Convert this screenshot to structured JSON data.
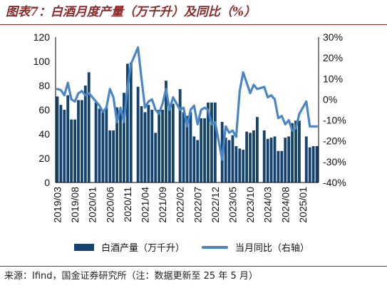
{
  "title": "图表7：白酒月度产量（万千升）及同比（%）",
  "source": "来源：Ifind，国金证券研究所（注：数据更新至 25 年 5 月）",
  "colors": {
    "bar": "#13436e",
    "line": "#4a86c5",
    "title": "#8c2a2a"
  },
  "chart_data": {
    "type": "bar+line",
    "x_ticks": [
      "2019/03",
      "2019/08",
      "2020/01",
      "2020/06",
      "2020/11",
      "2021/04",
      "2021/09",
      "2022/02",
      "2022/07",
      "2022/12",
      "2023/05",
      "2023/10",
      "2024/03",
      "2024/08",
      "2025/01"
    ],
    "categories": [
      "2019/03",
      "2019/04",
      "2019/05",
      "2019/06",
      "2019/07",
      "2019/08",
      "2019/09",
      "2019/10",
      "2019/11",
      "2019/12",
      "2020/01",
      "2020/02",
      "2020/03",
      "2020/04",
      "2020/05",
      "2020/06",
      "2020/07",
      "2020/08",
      "2020/09",
      "2020/10",
      "2020/11",
      "2020/12",
      "2021/01",
      "2021/02",
      "2021/03",
      "2021/04",
      "2021/05",
      "2021/06",
      "2021/07",
      "2021/08",
      "2021/09",
      "2021/10",
      "2021/11",
      "2021/12",
      "2022/01",
      "2022/02",
      "2022/03",
      "2022/04",
      "2022/05",
      "2022/06",
      "2022/07",
      "2022/08",
      "2022/09",
      "2022/10",
      "2022/11",
      "2022/12",
      "2023/01",
      "2023/02",
      "2023/03",
      "2023/04",
      "2023/05",
      "2023/06",
      "2023/07",
      "2023/08",
      "2023/09",
      "2023/10",
      "2023/11",
      "2023/12",
      "2024/01",
      "2024/02",
      "2024/03",
      "2024/04",
      "2024/05",
      "2024/06",
      "2024/07",
      "2024/08",
      "2024/09",
      "2024/10",
      "2024/11",
      "2024/12",
      "2025/01",
      "2025/02",
      "2025/03",
      "2025/04",
      "2025/05"
    ],
    "series": [
      {
        "name": "白酒产量（万千升）",
        "type": "bar",
        "axis": "left",
        "values": [
          71,
          64,
          60,
          72,
          52,
          52,
          68,
          68,
          80,
          91,
          null,
          66,
          61,
          58,
          62,
          43,
          43,
          62,
          60,
          74,
          98,
          99,
          null,
          79,
          63,
          58,
          64,
          60,
          41,
          60,
          60,
          84,
          65,
          65,
          null,
          77,
          58,
          55,
          58,
          38,
          35,
          53,
          53,
          66,
          66,
          66,
          null,
          50,
          37,
          35,
          39,
          30,
          28,
          27,
          42,
          41,
          43,
          54,
          null,
          43,
          36,
          37,
          38,
          26,
          26,
          37,
          38,
          49,
          51,
          51,
          null,
          38,
          29,
          30,
          30
        ]
      },
      {
        "name": "当月同比（右轴）",
        "type": "line",
        "axis": "right",
        "values": [
          5,
          4.5,
          2,
          8,
          0,
          -1,
          3,
          4,
          2,
          3,
          null,
          -1,
          -3,
          -6,
          -4,
          5,
          1,
          -11,
          -4,
          -11,
          6,
          17,
          null,
          25,
          10,
          -4,
          -1,
          0,
          -5,
          -7,
          -2,
          5,
          -5,
          1,
          null,
          -5,
          -4,
          -13,
          -5,
          -3,
          -12,
          -5,
          -4,
          -5,
          -12,
          -11,
          null,
          -29,
          -13,
          -16,
          -15,
          -18,
          4,
          13,
          8,
          3,
          7,
          5,
          null,
          6,
          1,
          2,
          0,
          -9,
          -8,
          -12,
          -10,
          -15,
          -14,
          -7,
          null,
          -1,
          -13,
          -13,
          -13
        ]
      }
    ],
    "y_left": {
      "min": 0,
      "max": 120,
      "ticks": [
        0,
        20,
        40,
        60,
        80,
        100,
        120
      ]
    },
    "y_right": {
      "min": -40,
      "max": 30,
      "ticks": [
        "-40%",
        "-30%",
        "-20%",
        "-10%",
        "0%",
        "10%",
        "20%",
        "30%"
      ]
    },
    "legend_position": "bottom",
    "grid": false
  }
}
